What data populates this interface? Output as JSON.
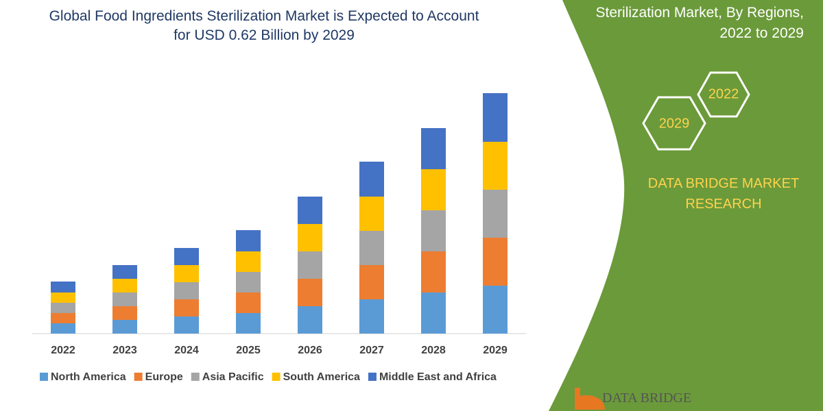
{
  "chart_data": {
    "type": "bar",
    "stacked": true,
    "title": "Global Food Ingredients Sterilization Market is Expected to Account for USD 0.62 Billion by 2029",
    "categories": [
      "2022",
      "2023",
      "2024",
      "2025",
      "2026",
      "2027",
      "2028",
      "2029"
    ],
    "series": [
      {
        "name": "North America",
        "color": "#5b9bd5",
        "values": [
          15,
          20,
          25,
          30,
          40,
          50,
          60,
          70
        ]
      },
      {
        "name": "Europe",
        "color": "#ed7d31",
        "values": [
          15,
          20,
          25,
          30,
          40,
          50,
          60,
          70
        ]
      },
      {
        "name": "Asia Pacific",
        "color": "#a5a5a5",
        "values": [
          15,
          20,
          25,
          30,
          40,
          50,
          60,
          70
        ]
      },
      {
        "name": "South America",
        "color": "#ffc000",
        "values": [
          15,
          20,
          25,
          30,
          40,
          50,
          60,
          70
        ]
      },
      {
        "name": "Middle East and Africa",
        "color": "#4472c4",
        "values": [
          16,
          20,
          25,
          31,
          40,
          51,
          60,
          71
        ]
      }
    ],
    "legend": "bottom"
  },
  "panel": {
    "subtitle_lines": [
      "Sterilization Market, By Regions,",
      "2022 to 2029"
    ],
    "hexagons": [
      "2022",
      "2029"
    ],
    "brand_lines": [
      "DATA BRIDGE MARKET",
      "RESEARCH"
    ],
    "logo": "DATA BRIDGE"
  }
}
